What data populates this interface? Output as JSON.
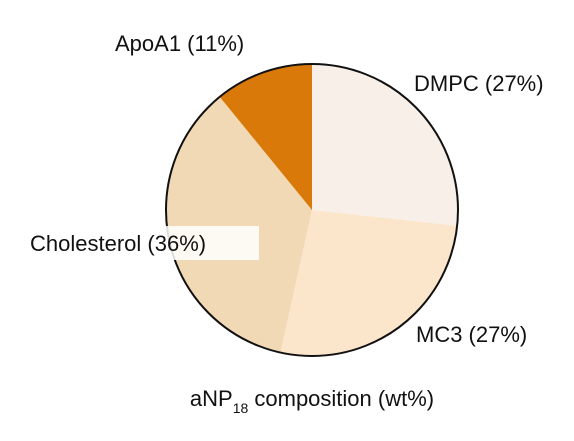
{
  "chart_data": {
    "type": "pie",
    "title": {
      "prefix": "aNP",
      "subscript": "18",
      "suffix": " composition (wt%)"
    },
    "slices": [
      {
        "label": "DMPC (27%)",
        "value": 27,
        "color": "#f8efe8"
      },
      {
        "label": "MC3 (27%)",
        "value": 27,
        "color": "#fce6cb"
      },
      {
        "label": "Cholesterol (36%)",
        "value": 36,
        "color": "#f2d9b6"
      },
      {
        "label": "ApoA1 (11%)",
        "value": 11,
        "color": "#d9790a"
      }
    ],
    "start_angle_deg": 0,
    "direction": "clockwise",
    "outline_color": "#111111"
  }
}
